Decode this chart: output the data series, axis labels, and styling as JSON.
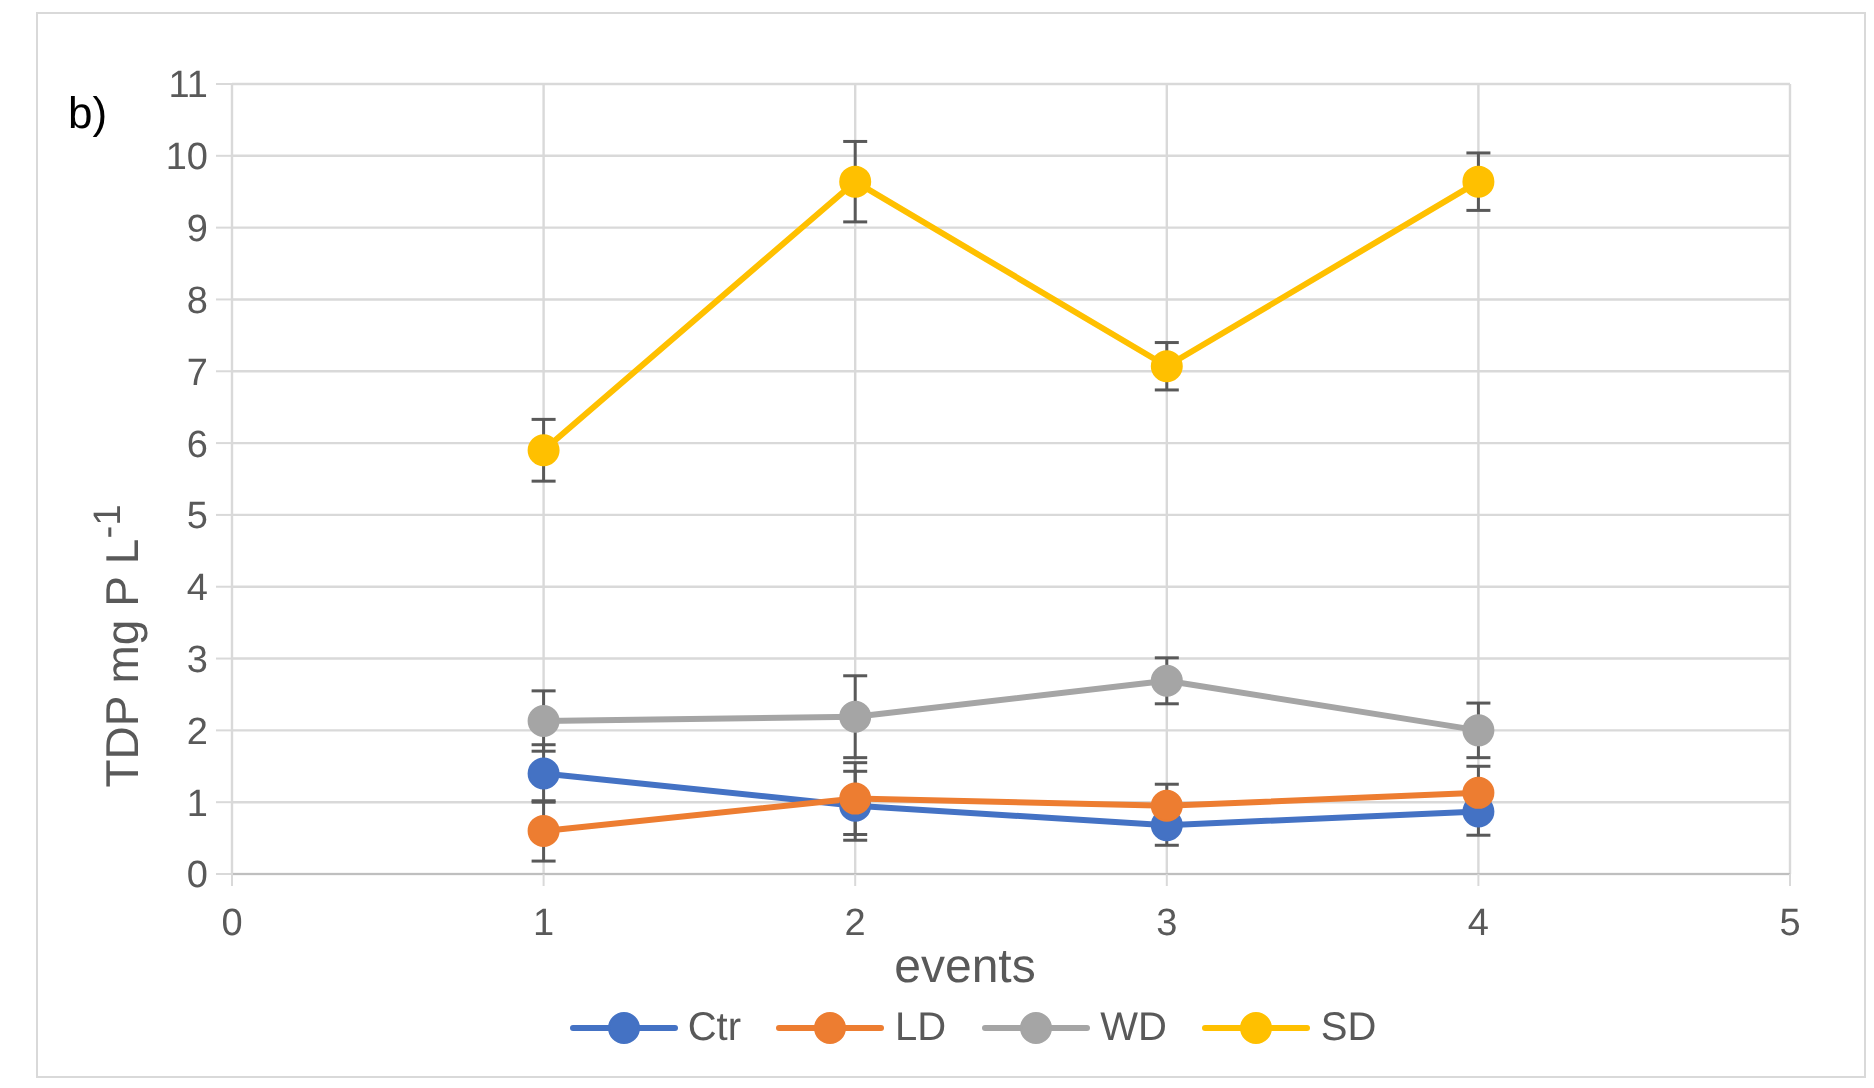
{
  "chart_data": {
    "type": "line",
    "xlabel": "events",
    "ylabel": "TDP mg P L$^{-1}$",
    "annotations": [
      "b)"
    ],
    "x": [
      1,
      2,
      3,
      4
    ],
    "series": [
      {
        "name": "Ctr",
        "color": "#4472c4",
        "values": [
          1.4,
          0.95,
          0.68,
          0.87
        ],
        "errors": [
          0.4,
          0.48,
          0.28,
          0.33
        ]
      },
      {
        "name": "LD",
        "color": "#ed7d31",
        "values": [
          0.6,
          1.05,
          0.95,
          1.13
        ],
        "errors": [
          0.42,
          0.5,
          0.3,
          0.37
        ]
      },
      {
        "name": "WD",
        "color": "#a5a5a5",
        "values": [
          2.13,
          2.19,
          2.69,
          2.0
        ],
        "errors": [
          0.42,
          0.57,
          0.32,
          0.38
        ]
      },
      {
        "name": "SD",
        "color": "#ffc000",
        "values": [
          5.9,
          9.64,
          7.07,
          9.64
        ],
        "errors": [
          0.43,
          0.56,
          0.33,
          0.4
        ]
      }
    ],
    "xlim": [
      0,
      5
    ],
    "xticks": [
      0,
      1,
      2,
      3,
      4,
      5
    ],
    "ylim": [
      0,
      11
    ],
    "yticks": [
      0,
      1,
      2,
      3,
      4,
      5,
      6,
      7,
      8,
      9,
      10,
      11
    ],
    "grid": true,
    "legend": "bottom",
    "marker": "circle",
    "line_style": "solid"
  }
}
